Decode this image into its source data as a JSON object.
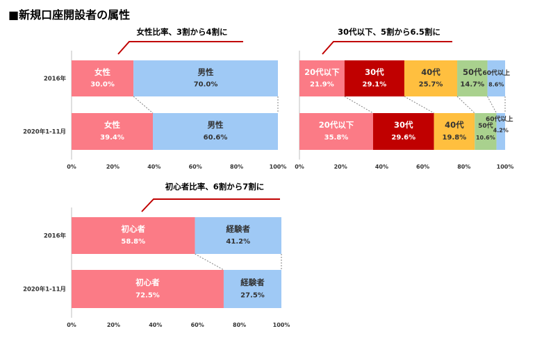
{
  "page_title": "■新規口座開設者の属性",
  "colors": {
    "pink": "#fb7b86",
    "blue": "#9fc9f5",
    "red": "#c00000",
    "yellow": "#ffbf3f",
    "green": "#a9d18e",
    "annotation_line": "#c00000",
    "connector": "#808080"
  },
  "chart_data": [
    {
      "type": "bar",
      "orientation": "horizontal",
      "stacked": true,
      "annotation": "女性比率、3割から4割に",
      "categories": [
        "2016年",
        "2020年1-11月"
      ],
      "xlim": [
        0,
        100
      ],
      "xticks": [
        "0%",
        "20%",
        "40%",
        "60%",
        "80%",
        "100%"
      ],
      "series": [
        {
          "name": "女性",
          "values": [
            30.0,
            39.4
          ],
          "labels": [
            "30.0%",
            "39.4%"
          ],
          "color": "#fb7b86",
          "text_color": "#ffffff"
        },
        {
          "name": "男性",
          "values": [
            70.0,
            60.6
          ],
          "labels": [
            "70.0%",
            "60.6%"
          ],
          "color": "#9fc9f5",
          "text_color": "#333333"
        }
      ]
    },
    {
      "type": "bar",
      "orientation": "horizontal",
      "stacked": true,
      "annotation": "30代以下、5割から6.5割に",
      "categories": [
        "2016年",
        "2020年1-11月"
      ],
      "xlim": [
        0,
        100
      ],
      "xticks": [
        "0%",
        "20%",
        "40%",
        "60%",
        "80%",
        "100%"
      ],
      "series": [
        {
          "name": "20代以下",
          "values": [
            21.9,
            35.8
          ],
          "labels": [
            "21.9%",
            "35.8%"
          ],
          "color": "#fb7b86",
          "text_color": "#ffffff"
        },
        {
          "name": "30代",
          "values": [
            29.1,
            29.6
          ],
          "labels": [
            "29.1%",
            "29.6%"
          ],
          "color": "#c00000",
          "text_color": "#ffffff"
        },
        {
          "name": "40代",
          "values": [
            25.7,
            19.8
          ],
          "labels": [
            "25.7%",
            "19.8%"
          ],
          "color": "#ffbf3f",
          "text_color": "#333333"
        },
        {
          "name": "50代",
          "values": [
            14.7,
            10.6
          ],
          "labels": [
            "14.7%",
            "10.6%"
          ],
          "color": "#a9d18e",
          "text_color": "#333333"
        },
        {
          "name": "60代以上",
          "values": [
            8.6,
            4.2
          ],
          "labels": [
            "8.6%",
            "4.2%"
          ],
          "color": "#9fc9f5",
          "text_color": "#333333"
        }
      ]
    },
    {
      "type": "bar",
      "orientation": "horizontal",
      "stacked": true,
      "annotation": "初心者比率、6割から7割に",
      "categories": [
        "2016年",
        "2020年1-11月"
      ],
      "xlim": [
        0,
        100
      ],
      "xticks": [
        "0%",
        "20%",
        "40%",
        "60%",
        "80%",
        "100%"
      ],
      "series": [
        {
          "name": "初心者",
          "values": [
            58.8,
            72.5
          ],
          "labels": [
            "58.8%",
            "72.5%"
          ],
          "color": "#fb7b86",
          "text_color": "#ffffff"
        },
        {
          "name": "経験者",
          "values": [
            41.2,
            27.5
          ],
          "labels": [
            "41.2%",
            "27.5%"
          ],
          "color": "#9fc9f5",
          "text_color": "#333333"
        }
      ]
    }
  ]
}
